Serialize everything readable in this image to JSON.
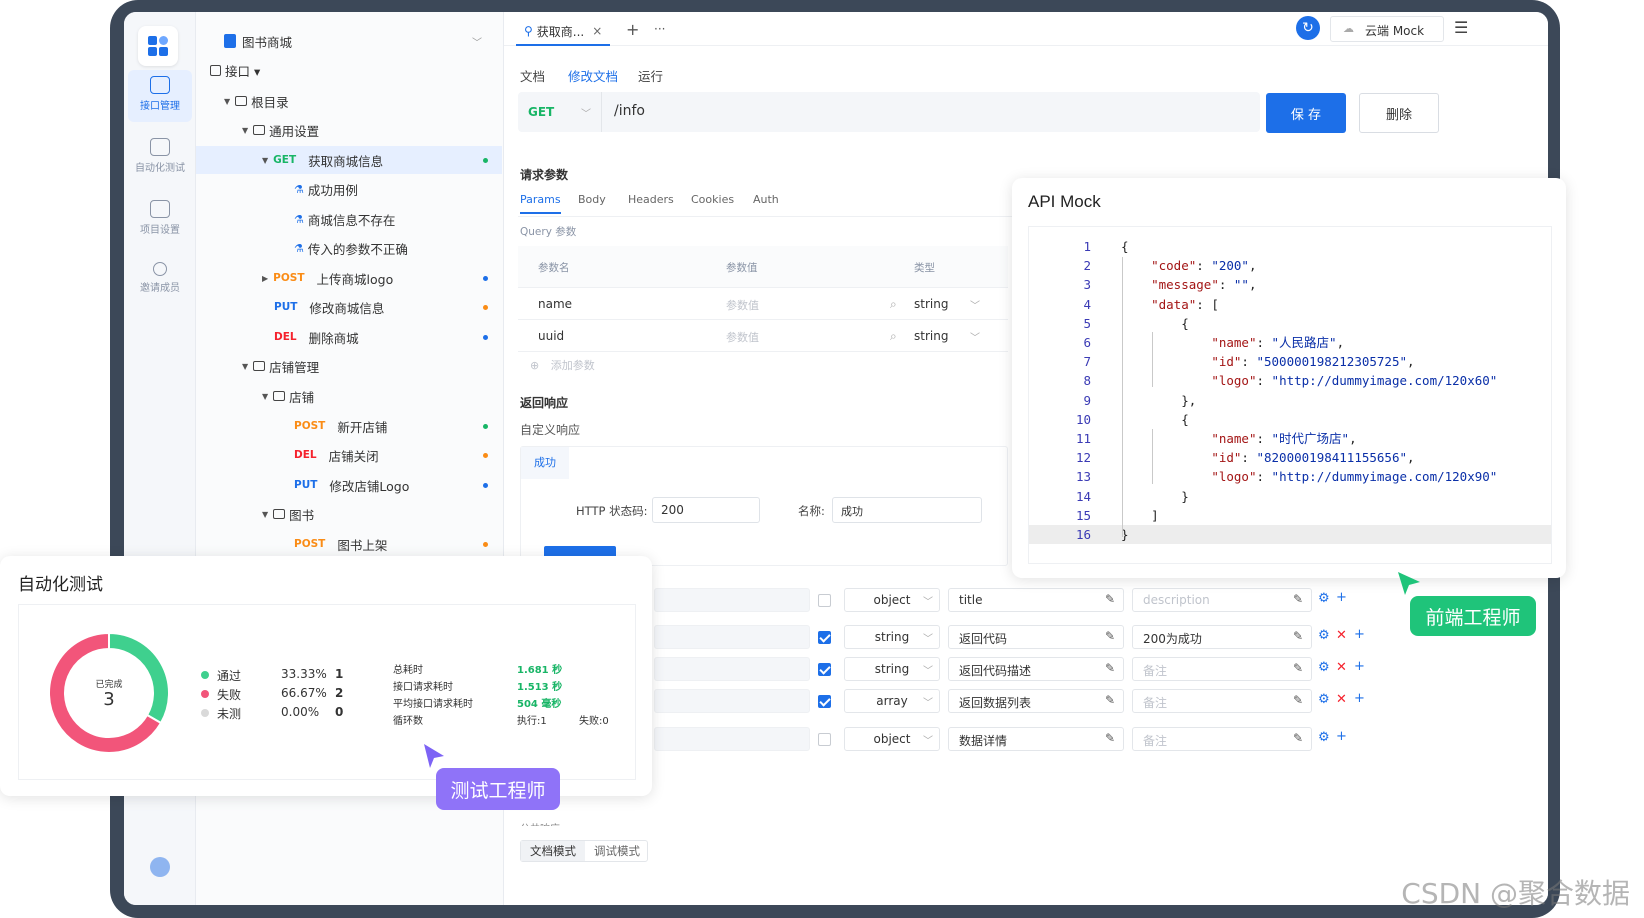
{
  "rail": {
    "items": [
      {
        "label": "接口管理"
      },
      {
        "label": "自动化测试"
      },
      {
        "label": "项目设置"
      },
      {
        "label": "邀请成员"
      }
    ]
  },
  "tree": {
    "project": "图书商城",
    "api_menu": "接口 ▾",
    "rows": [
      {
        "label": "根目录"
      },
      {
        "label": "通用设置"
      },
      {
        "method": "GET",
        "label": "获取商城信息"
      },
      {
        "label": "成功用例"
      },
      {
        "label": "商城信息不存在"
      },
      {
        "label": "传入的参数不正确"
      },
      {
        "method": "POST",
        "label": "上传商城logo"
      },
      {
        "method": "PUT",
        "label": "修改商城信息"
      },
      {
        "method": "DEL",
        "label": "删除商城"
      },
      {
        "label": "店铺管理"
      },
      {
        "label": "店铺"
      },
      {
        "method": "POST",
        "label": "新开店铺"
      },
      {
        "method": "DEL",
        "label": "店铺关闭"
      },
      {
        "method": "PUT",
        "label": "修改店铺Logo"
      },
      {
        "label": "图书"
      },
      {
        "method": "POST",
        "label": "图书上架"
      }
    ]
  },
  "topbar": {
    "tab_label": "获取商...",
    "tab_close": "×",
    "plus": "+",
    "more": "···",
    "env": "云端 Mock"
  },
  "subtabs": [
    "文档",
    "修改文档",
    "运行"
  ],
  "request": {
    "method": "GET",
    "path": "/info",
    "save": "保 存",
    "delete": "删除"
  },
  "params": {
    "section": "请求参数",
    "tabs": [
      "Params",
      "Body",
      "Headers",
      "Cookies",
      "Auth"
    ],
    "query_label": "Query 参数",
    "headers": [
      "参数名",
      "参数值",
      "类型"
    ],
    "rows": [
      {
        "name": "name",
        "placeholder": "参数值",
        "type": "string"
      },
      {
        "name": "uuid",
        "placeholder": "参数值",
        "type": "string"
      }
    ],
    "add": "添加参数"
  },
  "response": {
    "section": "返回响应",
    "custom": "自定义响应",
    "tab": "成功",
    "status_label": "HTTP 状态码:",
    "status_value": "200",
    "name_label": "名称:",
    "name_value": "成功"
  },
  "schema": {
    "rows": [
      {
        "checked": false,
        "type": "object",
        "field": "title",
        "desc": "description",
        "del": false
      },
      {
        "checked": true,
        "type": "string",
        "field": "返回代码",
        "desc": "200为成功",
        "del": true
      },
      {
        "checked": true,
        "type": "string",
        "field": "返回代码描述",
        "desc": "备注",
        "del": true
      },
      {
        "checked": true,
        "type": "array",
        "field": "返回数据列表",
        "desc": "备注",
        "del": true
      },
      {
        "checked": false,
        "type": "object",
        "field": "数据详情",
        "desc": "备注",
        "del": false
      }
    ]
  },
  "bottom": {
    "mode1": "文档模式",
    "mode2": "调试模式",
    "truncated": "公共响应"
  },
  "mock": {
    "title": "API Mock",
    "lines": [
      "{",
      "    \"code\": \"200\",",
      "    \"message\": \"\",",
      "    \"data\": [",
      "        {",
      "            \"name\": \"人民路店\",",
      "            \"id\": \"500000198212305725\",",
      "            \"logo\": \"http://dummyimage.com/120x60\"",
      "        },",
      "        {",
      "            \"name\": \"时代广场店\",",
      "            \"id\": \"820000198411155656\",",
      "            \"logo\": \"http://dummyimage.com/120x90\"",
      "        }",
      "    ]",
      "}"
    ]
  },
  "auto": {
    "title": "自动化测试",
    "center_label": "已完成",
    "center_value": "3",
    "legend": [
      {
        "label": "通过",
        "percent": "33.33%",
        "count": "1",
        "color": "#3fd08e"
      },
      {
        "label": "失败",
        "percent": "66.67%",
        "count": "2",
        "color": "#f2557a"
      },
      {
        "label": "未测",
        "percent": "0.00%",
        "count": "0",
        "color": "#d9d9d9"
      }
    ],
    "stats": [
      {
        "label": "总耗时",
        "value": "1.681 秒"
      },
      {
        "label": "接口请求耗时",
        "value": "1.513 秒"
      },
      {
        "label": "平均接口请求耗时",
        "value": "504 毫秒"
      },
      {
        "label": "循环数",
        "value": "执行:1",
        "extra": "失败:0"
      }
    ],
    "chart_data": {
      "type": "pie",
      "categories": [
        "通过",
        "失败",
        "未测"
      ],
      "values": [
        1,
        2,
        0
      ]
    }
  },
  "badges": {
    "tester": "测试工程师",
    "frontend": "前端工程师"
  },
  "watermark": "CSDN @聚合数据"
}
